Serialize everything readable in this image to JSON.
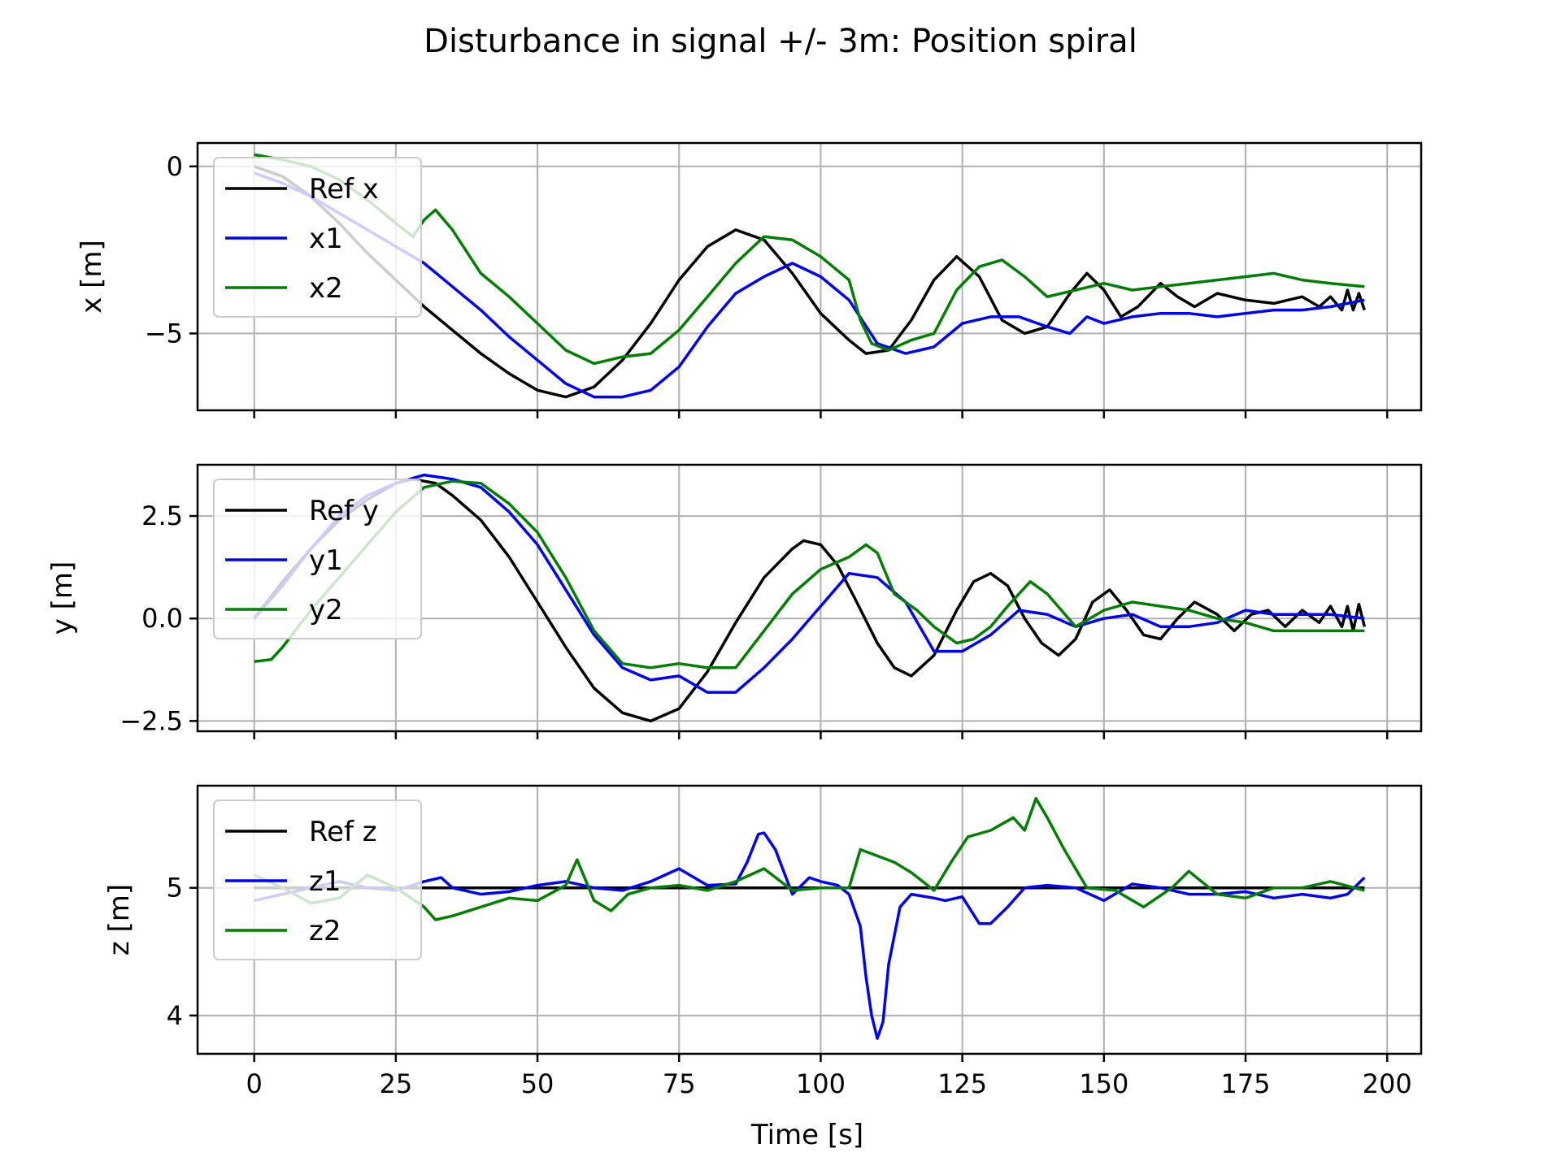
{
  "chart_data": {
    "type": "line",
    "title": "Disturbance in signal +/- 3m: Position spiral",
    "xlabel": "Time [s]",
    "xlim": [
      -10,
      206
    ],
    "x_ticks": [
      0,
      25,
      50,
      75,
      100,
      125,
      150,
      175,
      200
    ],
    "x_tick_labels": [
      "0",
      "25",
      "50",
      "75",
      "100",
      "125",
      "150",
      "175",
      "200"
    ],
    "grid": true,
    "legend_position": "upper-left",
    "colors": {
      "ref": "#000000",
      "agent1": "#0000ff",
      "agent2": "#008000"
    },
    "subplots": [
      {
        "ylabel": "x [m]",
        "ylim": [
          -7.3,
          0.7
        ],
        "y_ticks": [
          0,
          -5
        ],
        "y_tick_labels": [
          "0",
          "−5"
        ],
        "series": [
          {
            "name": "Ref x",
            "color": "#000000",
            "x": [
              0,
              5,
              10,
              15,
              20,
              25,
              30,
              35,
              40,
              45,
              50,
              55,
              60,
              65,
              70,
              75,
              80,
              85,
              90,
              95,
              100,
              105,
              108,
              112,
              116,
              120,
              124,
              128,
              132,
              136,
              140,
              144,
              147,
              150,
              153,
              156,
              160,
              163,
              166,
              170,
              175,
              180,
              185,
              188,
              190,
              192,
              193,
              194,
              195,
              196
            ],
            "y": [
              0,
              -0.3,
              -0.9,
              -1.7,
              -2.6,
              -3.4,
              -4.2,
              -4.9,
              -5.6,
              -6.2,
              -6.7,
              -6.9,
              -6.6,
              -5.8,
              -4.7,
              -3.4,
              -2.4,
              -1.9,
              -2.2,
              -3.2,
              -4.4,
              -5.2,
              -5.6,
              -5.5,
              -4.6,
              -3.4,
              -2.7,
              -3.3,
              -4.6,
              -5.0,
              -4.8,
              -3.8,
              -3.2,
              -3.7,
              -4.5,
              -4.2,
              -3.5,
              -3.9,
              -4.2,
              -3.8,
              -4.0,
              -4.1,
              -3.9,
              -4.2,
              -3.9,
              -4.3,
              -3.7,
              -4.3,
              -3.8,
              -4.3
            ]
          },
          {
            "name": "x1",
            "color": "#0000ff",
            "x": [
              0,
              5,
              10,
              15,
              20,
              25,
              30,
              35,
              40,
              45,
              50,
              55,
              60,
              65,
              70,
              75,
              80,
              85,
              90,
              95,
              100,
              105,
              110,
              115,
              120,
              125,
              130,
              135,
              140,
              144,
              147,
              150,
              155,
              160,
              165,
              170,
              175,
              180,
              185,
              190,
              196
            ],
            "y": [
              -0.2,
              -0.5,
              -0.9,
              -1.4,
              -1.9,
              -2.4,
              -2.9,
              -3.6,
              -4.3,
              -5.1,
              -5.8,
              -6.5,
              -6.9,
              -6.9,
              -6.7,
              -6.0,
              -4.8,
              -3.8,
              -3.3,
              -2.9,
              -3.3,
              -4.0,
              -5.3,
              -5.6,
              -5.4,
              -4.7,
              -4.5,
              -4.5,
              -4.8,
              -5.0,
              -4.5,
              -4.7,
              -4.5,
              -4.4,
              -4.4,
              -4.5,
              -4.4,
              -4.3,
              -4.3,
              -4.2,
              -4.0
            ]
          },
          {
            "name": "x2",
            "color": "#008000",
            "x": [
              0,
              5,
              10,
              15,
              20,
              25,
              28,
              30,
              32,
              35,
              40,
              45,
              50,
              55,
              60,
              65,
              70,
              75,
              80,
              85,
              90,
              95,
              100,
              105,
              107,
              109,
              112,
              116,
              120,
              124,
              128,
              132,
              136,
              140,
              145,
              150,
              155,
              160,
              165,
              170,
              175,
              180,
              185,
              190,
              196
            ],
            "y": [
              0.35,
              0.2,
              0.0,
              -0.4,
              -1.0,
              -1.7,
              -2.1,
              -1.6,
              -1.3,
              -1.9,
              -3.2,
              -3.9,
              -4.7,
              -5.5,
              -5.9,
              -5.7,
              -5.6,
              -4.9,
              -3.9,
              -2.9,
              -2.1,
              -2.2,
              -2.7,
              -3.4,
              -4.6,
              -5.3,
              -5.5,
              -5.2,
              -5.0,
              -3.7,
              -3.0,
              -2.8,
              -3.3,
              -3.9,
              -3.7,
              -3.5,
              -3.7,
              -3.6,
              -3.5,
              -3.4,
              -3.3,
              -3.2,
              -3.4,
              -3.5,
              -3.6
            ]
          }
        ]
      },
      {
        "ylabel": "y [m]",
        "ylim": [
          -2.75,
          3.75
        ],
        "y_ticks": [
          2.5,
          0.0,
          -2.5
        ],
        "y_tick_labels": [
          "2.5",
          "0.0",
          "−2.5"
        ],
        "series": [
          {
            "name": "Ref y",
            "color": "#000000",
            "x": [
              0,
              5,
              10,
              15,
              20,
              25,
              28,
              32,
              35,
              40,
              45,
              50,
              55,
              60,
              65,
              70,
              75,
              80,
              85,
              90,
              95,
              97,
              100,
              103,
              106,
              110,
              113,
              116,
              120,
              124,
              127,
              130,
              133,
              136,
              139,
              142,
              145,
              148,
              151,
              154,
              157,
              160,
              163,
              166,
              170,
              173,
              176,
              179,
              182,
              185,
              188,
              190,
              192,
              193,
              194,
              195,
              196
            ],
            "y": [
              0,
              0.9,
              1.7,
              2.4,
              2.9,
              3.3,
              3.4,
              3.3,
              3.0,
              2.4,
              1.5,
              0.4,
              -0.7,
              -1.7,
              -2.3,
              -2.5,
              -2.2,
              -1.3,
              -0.1,
              1.0,
              1.7,
              1.9,
              1.8,
              1.3,
              0.5,
              -0.6,
              -1.2,
              -1.4,
              -0.9,
              0.2,
              0.9,
              1.1,
              0.8,
              0.0,
              -0.6,
              -0.9,
              -0.5,
              0.4,
              0.7,
              0.2,
              -0.4,
              -0.5,
              0.0,
              0.4,
              0.1,
              -0.3,
              0.1,
              0.2,
              -0.2,
              0.2,
              -0.1,
              0.3,
              -0.2,
              0.3,
              -0.3,
              0.35,
              -0.2
            ]
          },
          {
            "name": "y1",
            "color": "#0000ff",
            "x": [
              0,
              5,
              10,
              15,
              20,
              25,
              30,
              35,
              40,
              45,
              50,
              55,
              60,
              65,
              70,
              75,
              80,
              85,
              90,
              95,
              100,
              105,
              110,
              115,
              120,
              125,
              130,
              135,
              140,
              145,
              150,
              155,
              160,
              165,
              170,
              175,
              180,
              185,
              190,
              196
            ],
            "y": [
              0,
              0.8,
              1.7,
              2.5,
              3.0,
              3.3,
              3.5,
              3.4,
              3.2,
              2.6,
              1.8,
              0.7,
              -0.4,
              -1.2,
              -1.5,
              -1.4,
              -1.8,
              -1.8,
              -1.2,
              -0.5,
              0.3,
              1.1,
              1.0,
              0.4,
              -0.8,
              -0.8,
              -0.4,
              0.2,
              0.1,
              -0.2,
              0.0,
              0.1,
              -0.2,
              -0.2,
              -0.1,
              0.2,
              0.1,
              0.1,
              0.1,
              0.0
            ]
          },
          {
            "name": "y2",
            "color": "#008000",
            "x": [
              0,
              3,
              5,
              10,
              15,
              20,
              25,
              30,
              35,
              40,
              45,
              50,
              55,
              60,
              65,
              70,
              75,
              80,
              85,
              90,
              95,
              100,
              105,
              108,
              110,
              113,
              117,
              120,
              124,
              127,
              130,
              133,
              137,
              140,
              145,
              150,
              155,
              160,
              165,
              170,
              175,
              180,
              185,
              190,
              196
            ],
            "y": [
              -1.05,
              -1.0,
              -0.7,
              0.2,
              1.0,
              1.8,
              2.6,
              3.2,
              3.35,
              3.3,
              2.8,
              2.1,
              1.0,
              -0.3,
              -1.1,
              -1.2,
              -1.1,
              -1.2,
              -1.2,
              -0.3,
              0.6,
              1.2,
              1.5,
              1.8,
              1.6,
              0.6,
              0.2,
              -0.2,
              -0.6,
              -0.5,
              -0.2,
              0.3,
              0.9,
              0.6,
              -0.2,
              0.2,
              0.4,
              0.3,
              0.2,
              0.0,
              -0.1,
              -0.3,
              -0.3,
              -0.3,
              -0.3
            ]
          }
        ]
      },
      {
        "ylabel": "z [m]",
        "ylim": [
          3.7,
          5.8
        ],
        "y_ticks": [
          5,
          4
        ],
        "y_tick_labels": [
          "5",
          "4"
        ],
        "series": [
          {
            "name": "Ref z",
            "color": "#000000",
            "x": [
              0,
              196
            ],
            "y": [
              5,
              5
            ]
          },
          {
            "name": "z1",
            "color": "#0000ff",
            "x": [
              0,
              5,
              10,
              15,
              20,
              25,
              30,
              33,
              35,
              40,
              45,
              50,
              55,
              60,
              65,
              70,
              75,
              80,
              85,
              87,
              89,
              90,
              92,
              95,
              98,
              100,
              103,
              105,
              107,
              108,
              109,
              110,
              111,
              112,
              114,
              116,
              120,
              122,
              125,
              128,
              130,
              133,
              136,
              140,
              145,
              150,
              155,
              160,
              165,
              170,
              175,
              180,
              185,
              190,
              193,
              196
            ],
            "y": [
              4.9,
              4.95,
              5.0,
              5.05,
              5.0,
              4.98,
              5.05,
              5.08,
              5.0,
              4.95,
              4.97,
              5.02,
              5.05,
              5.0,
              4.98,
              5.05,
              5.15,
              5.02,
              5.03,
              5.2,
              5.42,
              5.43,
              5.3,
              4.95,
              5.08,
              5.05,
              5.02,
              4.95,
              4.7,
              4.3,
              4.0,
              3.82,
              3.95,
              4.4,
              4.85,
              4.95,
              4.92,
              4.9,
              4.93,
              4.72,
              4.72,
              4.85,
              5.0,
              5.02,
              5.0,
              4.9,
              5.03,
              5.0,
              4.95,
              4.95,
              4.97,
              4.92,
              4.95,
              4.92,
              4.95,
              5.08
            ]
          },
          {
            "name": "z2",
            "color": "#008000",
            "x": [
              0,
              5,
              10,
              15,
              20,
              25,
              30,
              32,
              35,
              40,
              45,
              50,
              55,
              57,
              60,
              63,
              66,
              70,
              75,
              80,
              85,
              90,
              95,
              100,
              105,
              107,
              110,
              113,
              116,
              118,
              120,
              123,
              126,
              130,
              134,
              136,
              138,
              140,
              143,
              147,
              152,
              157,
              162,
              165,
              170,
              175,
              180,
              185,
              190,
              196
            ],
            "y": [
              5.1,
              5.0,
              4.88,
              4.92,
              5.1,
              5.0,
              4.85,
              4.75,
              4.78,
              4.85,
              4.92,
              4.9,
              5.02,
              5.22,
              4.9,
              4.82,
              4.95,
              5.0,
              5.02,
              4.98,
              5.05,
              5.15,
              4.98,
              5.0,
              5.0,
              5.3,
              5.25,
              5.2,
              5.12,
              5.05,
              4.98,
              5.2,
              5.4,
              5.45,
              5.55,
              5.45,
              5.7,
              5.55,
              5.3,
              5.0,
              4.98,
              4.85,
              5.0,
              5.13,
              4.95,
              4.92,
              5.0,
              5.0,
              5.05,
              4.98
            ]
          }
        ]
      }
    ]
  }
}
